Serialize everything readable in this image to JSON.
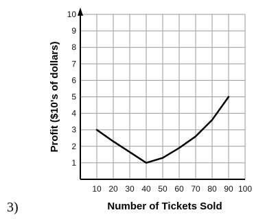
{
  "problem_label": "3)",
  "chart_data": {
    "type": "line",
    "xlabel": "Number of Tickets Sold",
    "ylabel": "Profit ($10's of dollars)",
    "xlim": [
      0,
      100
    ],
    "ylim": [
      0,
      10
    ],
    "x_ticks": [
      10,
      20,
      30,
      40,
      50,
      60,
      70,
      80,
      90,
      100
    ],
    "y_ticks": [
      1,
      2,
      3,
      4,
      5,
      6,
      7,
      8,
      9,
      10
    ],
    "grid": true,
    "series": [
      {
        "x": [
          10,
          20,
          30,
          40,
          50,
          60,
          70,
          80,
          90
        ],
        "y": [
          3,
          2.3,
          1.65,
          1,
          1.3,
          1.9,
          2.6,
          3.6,
          5
        ]
      }
    ]
  }
}
